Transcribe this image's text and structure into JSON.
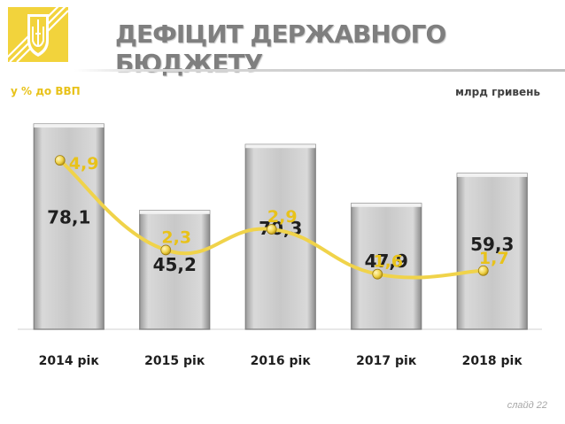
{
  "header": {
    "title": "ДЕФІЦИТ ДЕРЖАВНОГО БЮДЖЕТУ",
    "left_unit": "у % до ВВП",
    "right_unit": "млрд гривень"
  },
  "footer": {
    "slide": "слайд 22"
  },
  "colors": {
    "accent": "#f0d34a",
    "accent_dark": "#e8c21a",
    "title": "#7f7f7f",
    "bar": "#bfbfbf"
  },
  "chart_data": {
    "type": "bar",
    "categories": [
      "2014 рік",
      "2015 рік",
      "2016 рік",
      "2017 рік",
      "2018 рік"
    ],
    "series": [
      {
        "name": "млрд гривень",
        "type": "bar",
        "values": [
          78.1,
          45.2,
          70.3,
          47.9,
          59.3
        ],
        "labels": [
          "78,1",
          "45,2",
          "70,3",
          "47,9",
          "59,3"
        ]
      },
      {
        "name": "у % до ВВП",
        "type": "line",
        "values": [
          4.9,
          2.3,
          2.9,
          1.6,
          1.7
        ],
        "labels": [
          "4,9",
          "2,3",
          "2,9",
          "1,6",
          "1,7"
        ]
      }
    ],
    "bar_ylim": [
      0,
      100
    ],
    "line_ylim": [
      0,
      6
    ],
    "grid": false,
    "legend": "none"
  }
}
